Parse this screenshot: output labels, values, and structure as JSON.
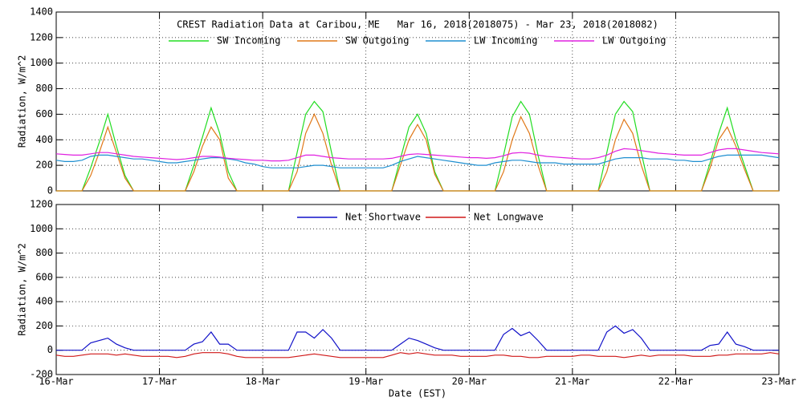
{
  "chart_data": [
    {
      "type": "line",
      "title": "CREST Radiation Data at Caribou, ME   Mar 16, 2018(2018075) - Mar 23, 2018(2018082)",
      "ylabel": "Radiation, W/m^2",
      "x": [
        0,
        2,
        4,
        6,
        8,
        10,
        12,
        14,
        16,
        18,
        20,
        22,
        24,
        26,
        28,
        30,
        32,
        34,
        36,
        38,
        40,
        42,
        44,
        46,
        48,
        50,
        52,
        54,
        56,
        58,
        60,
        62,
        64,
        66,
        68,
        70,
        72,
        74,
        76,
        78,
        80,
        82,
        84,
        86,
        88,
        90,
        92,
        94,
        96,
        98,
        100,
        102,
        104,
        106,
        108,
        110,
        112,
        114,
        116,
        118,
        120,
        122,
        124,
        126,
        128,
        130,
        132,
        134,
        136,
        138,
        140,
        142,
        144,
        146,
        148,
        150,
        152,
        154,
        156,
        158,
        160,
        162,
        164,
        166,
        168
      ],
      "xlim": [
        0,
        168
      ],
      "ylim": [
        0,
        1400
      ],
      "yticks": [
        0,
        200,
        400,
        600,
        800,
        1000,
        1200,
        1400
      ],
      "grid": true,
      "series": [
        {
          "name": "SW Incoming",
          "color": "#22dd22",
          "values": [
            0,
            0,
            0,
            0,
            180,
            380,
            600,
            350,
            120,
            0,
            0,
            0,
            0,
            0,
            0,
            0,
            200,
            420,
            650,
            450,
            150,
            0,
            0,
            0,
            0,
            0,
            0,
            0,
            300,
            600,
            700,
            620,
            300,
            0,
            0,
            0,
            0,
            0,
            0,
            0,
            250,
            500,
            600,
            450,
            150,
            0,
            0,
            0,
            0,
            0,
            0,
            0,
            280,
            580,
            700,
            600,
            280,
            0,
            0,
            0,
            0,
            0,
            0,
            0,
            300,
            600,
            700,
            620,
            300,
            0,
            0,
            0,
            0,
            0,
            0,
            0,
            220,
            450,
            650,
            400,
            200,
            0,
            0,
            0,
            0
          ]
        },
        {
          "name": "SW Outgoing",
          "color": "#e07818",
          "values": [
            0,
            0,
            0,
            0,
            120,
            300,
            500,
            300,
            100,
            0,
            0,
            0,
            0,
            0,
            0,
            0,
            150,
            350,
            500,
            400,
            100,
            0,
            0,
            0,
            0,
            0,
            0,
            0,
            150,
            450,
            600,
            450,
            200,
            0,
            0,
            0,
            0,
            0,
            0,
            0,
            200,
            400,
            520,
            400,
            130,
            0,
            0,
            0,
            0,
            0,
            0,
            0,
            150,
            400,
            580,
            450,
            200,
            0,
            0,
            0,
            0,
            0,
            0,
            0,
            150,
            400,
            560,
            450,
            200,
            0,
            0,
            0,
            0,
            0,
            0,
            0,
            180,
            400,
            500,
            350,
            170,
            0,
            0,
            0,
            0
          ]
        },
        {
          "name": "LW Incoming",
          "color": "#1f8fd0",
          "values": [
            240,
            230,
            230,
            240,
            270,
            280,
            280,
            270,
            260,
            250,
            250,
            240,
            230,
            220,
            220,
            230,
            240,
            250,
            260,
            260,
            250,
            240,
            220,
            210,
            190,
            180,
            180,
            180,
            180,
            190,
            200,
            200,
            190,
            180,
            180,
            180,
            180,
            180,
            180,
            200,
            230,
            250,
            270,
            260,
            250,
            240,
            230,
            220,
            210,
            200,
            200,
            220,
            230,
            240,
            240,
            230,
            220,
            220,
            220,
            210,
            210,
            210,
            210,
            210,
            230,
            250,
            260,
            260,
            260,
            250,
            250,
            250,
            240,
            240,
            230,
            230,
            250,
            270,
            280,
            280,
            280,
            280,
            280,
            270,
            260
          ]
        },
        {
          "name": "LW Outgoing",
          "color": "#e020e0",
          "values": [
            290,
            285,
            280,
            280,
            290,
            300,
            300,
            290,
            280,
            270,
            265,
            260,
            255,
            250,
            245,
            250,
            260,
            270,
            270,
            265,
            255,
            250,
            245,
            240,
            240,
            235,
            235,
            240,
            260,
            280,
            280,
            270,
            260,
            255,
            250,
            250,
            250,
            250,
            250,
            255,
            270,
            285,
            290,
            285,
            280,
            275,
            270,
            265,
            260,
            260,
            255,
            260,
            275,
            295,
            300,
            295,
            280,
            270,
            265,
            260,
            255,
            250,
            250,
            260,
            280,
            310,
            330,
            325,
            315,
            305,
            295,
            290,
            285,
            280,
            280,
            280,
            300,
            320,
            330,
            330,
            320,
            310,
            300,
            295,
            290
          ]
        }
      ]
    },
    {
      "type": "line",
      "ylabel": "Radiation, W/m^2",
      "xlabel": "Date (EST)",
      "x": [
        0,
        2,
        4,
        6,
        8,
        10,
        12,
        14,
        16,
        18,
        20,
        22,
        24,
        26,
        28,
        30,
        32,
        34,
        36,
        38,
        40,
        42,
        44,
        46,
        48,
        50,
        52,
        54,
        56,
        58,
        60,
        62,
        64,
        66,
        68,
        70,
        72,
        74,
        76,
        78,
        80,
        82,
        84,
        86,
        88,
        90,
        92,
        94,
        96,
        98,
        100,
        102,
        104,
        106,
        108,
        110,
        112,
        114,
        116,
        118,
        120,
        122,
        124,
        126,
        128,
        130,
        132,
        134,
        136,
        138,
        140,
        142,
        144,
        146,
        148,
        150,
        152,
        154,
        156,
        158,
        160,
        162,
        164,
        166,
        168
      ],
      "xlim": [
        0,
        168
      ],
      "xticks": [
        {
          "value": 0,
          "label": "16-Mar"
        },
        {
          "value": 24,
          "label": "17-Mar"
        },
        {
          "value": 48,
          "label": "18-Mar"
        },
        {
          "value": 72,
          "label": "19-Mar"
        },
        {
          "value": 96,
          "label": "20-Mar"
        },
        {
          "value": 120,
          "label": "21-Mar"
        },
        {
          "value": 144,
          "label": "22-Mar"
        },
        {
          "value": 168,
          "label": "23-Mar"
        }
      ],
      "ylim": [
        -200,
        1200
      ],
      "yticks": [
        -200,
        0,
        200,
        400,
        600,
        800,
        1000,
        1200
      ],
      "grid": true,
      "series": [
        {
          "name": "Net Shortwave",
          "color": "#1010c8",
          "values": [
            0,
            0,
            0,
            0,
            60,
            80,
            100,
            50,
            20,
            0,
            0,
            0,
            0,
            0,
            0,
            0,
            50,
            70,
            150,
            50,
            50,
            0,
            0,
            0,
            0,
            0,
            0,
            0,
            150,
            150,
            100,
            170,
            100,
            0,
            0,
            0,
            0,
            0,
            0,
            0,
            50,
            100,
            80,
            50,
            20,
            0,
            0,
            0,
            0,
            0,
            0,
            0,
            130,
            180,
            120,
            150,
            80,
            0,
            0,
            0,
            0,
            0,
            0,
            0,
            150,
            200,
            140,
            170,
            100,
            0,
            0,
            0,
            0,
            0,
            0,
            0,
            40,
            50,
            150,
            50,
            30,
            0,
            0,
            0,
            0
          ]
        },
        {
          "name": "Net Longwave",
          "color": "#d01818",
          "values": [
            -40,
            -50,
            -50,
            -40,
            -30,
            -30,
            -30,
            -40,
            -30,
            -40,
            -50,
            -50,
            -50,
            -50,
            -60,
            -50,
            -30,
            -20,
            -20,
            -20,
            -30,
            -50,
            -60,
            -60,
            -60,
            -60,
            -60,
            -60,
            -50,
            -40,
            -30,
            -40,
            -50,
            -60,
            -60,
            -60,
            -60,
            -60,
            -60,
            -40,
            -20,
            -30,
            -20,
            -30,
            -40,
            -40,
            -40,
            -50,
            -50,
            -50,
            -50,
            -40,
            -40,
            -50,
            -50,
            -60,
            -60,
            -50,
            -50,
            -50,
            -50,
            -40,
            -40,
            -50,
            -50,
            -50,
            -60,
            -50,
            -40,
            -50,
            -40,
            -40,
            -40,
            -40,
            -50,
            -50,
            -50,
            -40,
            -40,
            -30,
            -30,
            -30,
            -30,
            -20,
            -30
          ]
        }
      ]
    }
  ]
}
